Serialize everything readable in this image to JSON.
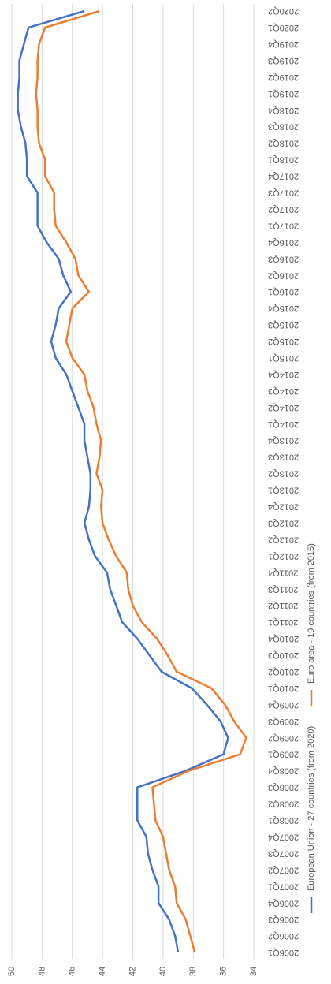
{
  "chart_data": {
    "type": "line",
    "categories": [
      "2006Q1",
      "2006Q2",
      "2006Q3",
      "2006Q4",
      "2007Q1",
      "2007Q2",
      "2007Q3",
      "2007Q4",
      "2008Q1",
      "2008Q2",
      "2008Q3",
      "2008Q4",
      "2009Q1",
      "2009Q2",
      "2009Q3",
      "2009Q4",
      "2010Q1",
      "2010Q2",
      "2010Q3",
      "2010Q4",
      "2011Q1",
      "2011Q2",
      "2011Q3",
      "2011Q4",
      "2012Q1",
      "2012Q2",
      "2012Q3",
      "2012Q4",
      "2013Q1",
      "2013Q2",
      "2013Q3",
      "2013Q4",
      "2014Q1",
      "2014Q2",
      "2014Q3",
      "2014Q4",
      "2015Q1",
      "2015Q2",
      "2015Q3",
      "2015Q4",
      "2016Q1",
      "2016Q2",
      "2016Q3",
      "2016Q4",
      "2017Q1",
      "2017Q2",
      "2017Q3",
      "2017Q4",
      "2018Q1",
      "2018Q2",
      "2018Q3",
      "2018Q4",
      "2019Q1",
      "2019Q2",
      "2019Q3",
      "2019Q4",
      "2020Q1",
      "2020Q2"
    ],
    "series": [
      {
        "name": "European Union - 27 countries (from 2020)",
        "color": "#4472c4",
        "values": [
          39.0,
          39.2,
          39.6,
          40.3,
          40.3,
          40.7,
          41.0,
          41.1,
          41.7,
          41.7,
          41.7,
          38.5,
          36.0,
          35.7,
          36.2,
          37.1,
          38.1,
          40.1,
          40.9,
          41.7,
          42.7,
          43.1,
          43.5,
          43.7,
          44.5,
          44.9,
          45.2,
          44.9,
          44.8,
          44.8,
          45.0,
          45.2,
          45.2,
          45.6,
          46.0,
          46.4,
          47.1,
          47.4,
          47.1,
          46.9,
          46.1,
          46.6,
          46.9,
          47.7,
          48.3,
          48.3,
          48.3,
          49.0,
          49.0,
          49.1,
          49.4,
          49.6,
          49.6,
          49.5,
          49.5,
          49.2,
          48.9,
          45.2
        ]
      },
      {
        "name": "Euro area - 19 countries  (from 2015)",
        "color": "#ed7d31",
        "values": [
          37.9,
          38.2,
          38.5,
          39.1,
          39.2,
          39.6,
          39.8,
          40.0,
          40.5,
          40.6,
          40.7,
          38.3,
          34.9,
          34.5,
          35.3,
          35.9,
          36.8,
          39.1,
          39.7,
          40.4,
          41.4,
          42.0,
          42.3,
          42.4,
          43.1,
          43.6,
          44.0,
          44.1,
          44.0,
          44.4,
          44.2,
          44.1,
          44.4,
          44.6,
          45.0,
          45.2,
          46.0,
          46.4,
          46.2,
          46.0,
          44.9,
          45.6,
          45.8,
          46.4,
          47.1,
          47.2,
          47.2,
          47.8,
          47.8,
          48.2,
          48.3,
          48.3,
          48.4,
          48.3,
          48.3,
          48.2,
          47.8,
          44.2
        ]
      }
    ],
    "ylim": [
      34,
      50
    ],
    "yticks": [
      34,
      36,
      38,
      40,
      42,
      44,
      46,
      48,
      50
    ],
    "grid": true
  }
}
